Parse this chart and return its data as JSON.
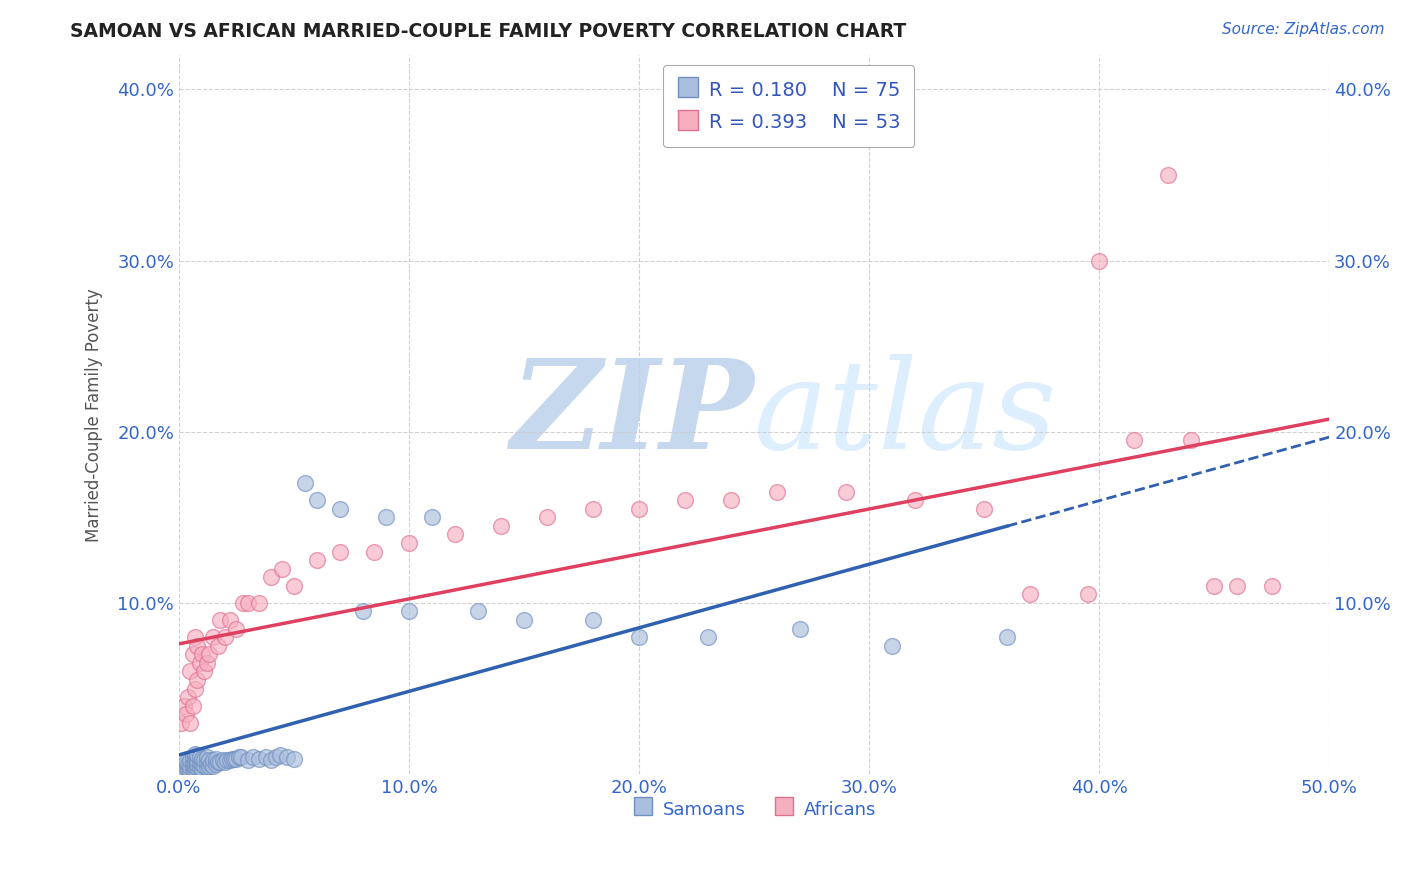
{
  "title": "SAMOAN VS AFRICAN MARRIED-COUPLE FAMILY POVERTY CORRELATION CHART",
  "source": "Source: ZipAtlas.com",
  "ylabel": "Married-Couple Family Poverty",
  "xlim": [
    0.0,
    0.5
  ],
  "ylim": [
    0.0,
    0.42
  ],
  "xticks": [
    0.0,
    0.1,
    0.2,
    0.3,
    0.4,
    0.5
  ],
  "yticks": [
    0.0,
    0.1,
    0.2,
    0.3,
    0.4
  ],
  "xtick_labels": [
    "0.0%",
    "10.0%",
    "20.0%",
    "30.0%",
    "40.0%",
    "50.0%"
  ],
  "ytick_labels": [
    "",
    "10.0%",
    "20.0%",
    "30.0%",
    "40.0%"
  ],
  "R_samoan": 0.18,
  "N_samoan": 75,
  "R_african": 0.393,
  "N_african": 53,
  "samoan_color": "#aabedd",
  "african_color": "#f5b0c0",
  "samoan_edge": "#7090c0",
  "african_edge": "#e07090",
  "trend_samoan_color": "#3060b0",
  "trend_african_color": "#e04060",
  "watermark": "ZIPatlas",
  "watermark_color": "#dce8f5",
  "background_color": "#ffffff",
  "grid_color": "#cccccc",
  "legend_text_color": "#3355bb",
  "samoan_x": [
    0.001,
    0.002,
    0.003,
    0.003,
    0.004,
    0.004,
    0.005,
    0.005,
    0.005,
    0.006,
    0.006,
    0.006,
    0.006,
    0.007,
    0.007,
    0.007,
    0.007,
    0.007,
    0.008,
    0.008,
    0.008,
    0.008,
    0.009,
    0.009,
    0.009,
    0.01,
    0.01,
    0.01,
    0.011,
    0.011,
    0.012,
    0.012,
    0.012,
    0.013,
    0.013,
    0.014,
    0.015,
    0.015,
    0.016,
    0.016,
    0.017,
    0.018,
    0.019,
    0.02,
    0.021,
    0.022,
    0.023,
    0.024,
    0.025,
    0.026,
    0.027,
    0.03,
    0.032,
    0.035,
    0.038,
    0.04,
    0.042,
    0.044,
    0.047,
    0.05,
    0.055,
    0.06,
    0.07,
    0.08,
    0.09,
    0.1,
    0.11,
    0.13,
    0.15,
    0.18,
    0.2,
    0.23,
    0.27,
    0.31,
    0.36
  ],
  "samoan_y": [
    0.005,
    0.003,
    0.004,
    0.007,
    0.003,
    0.006,
    0.002,
    0.004,
    0.008,
    0.003,
    0.005,
    0.007,
    0.01,
    0.003,
    0.005,
    0.007,
    0.01,
    0.012,
    0.004,
    0.006,
    0.008,
    0.011,
    0.004,
    0.007,
    0.01,
    0.003,
    0.006,
    0.009,
    0.005,
    0.008,
    0.004,
    0.007,
    0.01,
    0.005,
    0.008,
    0.006,
    0.005,
    0.008,
    0.006,
    0.009,
    0.007,
    0.007,
    0.008,
    0.007,
    0.008,
    0.008,
    0.009,
    0.009,
    0.009,
    0.01,
    0.01,
    0.008,
    0.01,
    0.009,
    0.01,
    0.008,
    0.01,
    0.011,
    0.01,
    0.009,
    0.17,
    0.16,
    0.155,
    0.095,
    0.15,
    0.095,
    0.15,
    0.095,
    0.09,
    0.09,
    0.08,
    0.08,
    0.085,
    0.075,
    0.08
  ],
  "african_x": [
    0.001,
    0.002,
    0.003,
    0.004,
    0.005,
    0.005,
    0.006,
    0.006,
    0.007,
    0.007,
    0.008,
    0.008,
    0.009,
    0.01,
    0.011,
    0.012,
    0.013,
    0.015,
    0.017,
    0.018,
    0.02,
    0.022,
    0.025,
    0.028,
    0.03,
    0.035,
    0.04,
    0.045,
    0.05,
    0.06,
    0.07,
    0.085,
    0.1,
    0.12,
    0.14,
    0.16,
    0.18,
    0.2,
    0.22,
    0.24,
    0.26,
    0.29,
    0.32,
    0.35,
    0.37,
    0.395,
    0.4,
    0.415,
    0.43,
    0.44,
    0.45,
    0.46,
    0.475
  ],
  "african_y": [
    0.03,
    0.04,
    0.035,
    0.045,
    0.03,
    0.06,
    0.04,
    0.07,
    0.05,
    0.08,
    0.055,
    0.075,
    0.065,
    0.07,
    0.06,
    0.065,
    0.07,
    0.08,
    0.075,
    0.09,
    0.08,
    0.09,
    0.085,
    0.1,
    0.1,
    0.1,
    0.115,
    0.12,
    0.11,
    0.125,
    0.13,
    0.13,
    0.135,
    0.14,
    0.145,
    0.15,
    0.155,
    0.155,
    0.16,
    0.16,
    0.165,
    0.165,
    0.16,
    0.155,
    0.105,
    0.105,
    0.3,
    0.195,
    0.35,
    0.195,
    0.11,
    0.11,
    0.11
  ]
}
